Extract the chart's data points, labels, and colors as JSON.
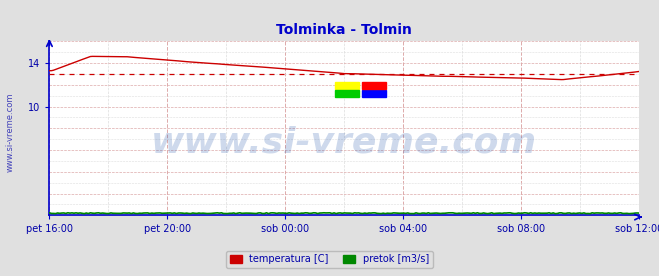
{
  "title": "Tolminka - Tolmin",
  "title_color": "#0000cc",
  "title_fontsize": 10,
  "bg_color": "#e0e0e0",
  "plot_bg_color": "#ffffff",
  "grid_color": "#ddaaaa",
  "xlabel_color": "#0000aa",
  "ylabel_color": "#0000aa",
  "spine_color": "#0000cc",
  "watermark_text": "www.si-vreme.com",
  "watermark_color": "#2255aa",
  "watermark_alpha": 0.22,
  "watermark_fontsize": 26,
  "side_label": "www.si-vreme.com",
  "side_label_color": "#0000aa",
  "side_label_fontsize": 6,
  "ylim": [
    0,
    16
  ],
  "yticks": [
    10,
    14
  ],
  "avg_line_value": 13.0,
  "avg_line_color": "#cc0000",
  "temp_color": "#cc0000",
  "flow_color": "#008800",
  "temp_linewidth": 1.0,
  "flow_linewidth": 1.2,
  "legend_temp_label": "temperatura [C]",
  "legend_flow_label": "pretok [m3/s]",
  "x_tick_labels": [
    "pet 16:00",
    "pet 20:00",
    "sob 00:00",
    "sob 04:00",
    "sob 08:00",
    "sob 12:00"
  ],
  "x_tick_positions": [
    0.0,
    0.2,
    0.4,
    0.6,
    0.8,
    1.0
  ],
  "n_points": 289
}
